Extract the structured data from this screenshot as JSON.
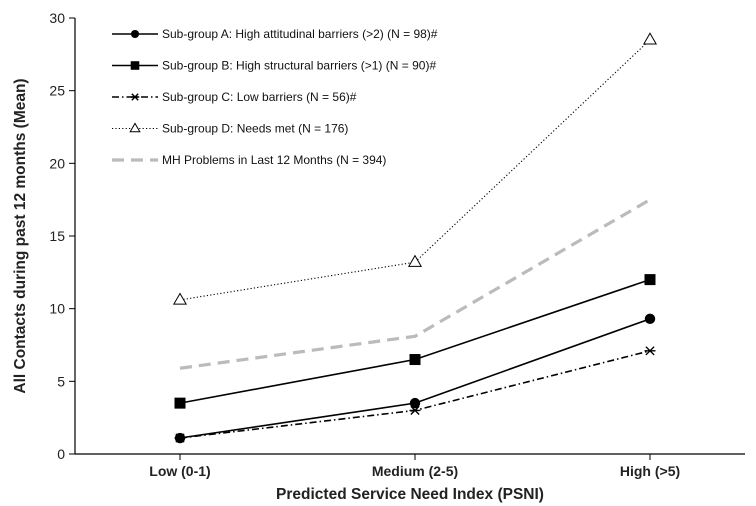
{
  "chart_data": {
    "type": "line",
    "categories": [
      "Low (0-1)",
      "Medium (2-5)",
      "High (>5)"
    ],
    "xlabel": "Predicted Service Need Index (PSNI)",
    "ylabel": "All Contacts during past 12 months (Mean)",
    "ylim": [
      0,
      30
    ],
    "yticks": [
      0,
      5,
      10,
      15,
      20,
      25,
      30
    ],
    "grid": false,
    "legend_position": "top-left",
    "series": [
      {
        "name": "Sub-group A:  High attitudinal barriers (>2) (N = 98)#",
        "values": [
          1.1,
          3.5,
          9.3
        ],
        "marker": "circle",
        "line": "solid",
        "color": "#000000"
      },
      {
        "name": "Sub-group B:  High structural barriers (>1) (N = 90)#",
        "values": [
          3.5,
          6.5,
          12.0
        ],
        "marker": "square",
        "line": "solid",
        "color": "#000000"
      },
      {
        "name": "Sub-group C:  Low barriers (N = 56)#",
        "values": [
          1.1,
          3.0,
          7.1
        ],
        "marker": "asterisk",
        "line": "dashdot",
        "color": "#000000"
      },
      {
        "name": "Sub-group D:  Needs met (N = 176)",
        "values": [
          10.6,
          13.2,
          28.5
        ],
        "marker": "triangle-open",
        "line": "dotted",
        "color": "#000000"
      },
      {
        "name": "MH Problems in Last 12 Months (N = 394)",
        "values": [
          5.9,
          8.1,
          17.5
        ],
        "marker": "none",
        "line": "dashed-thick",
        "color": "#bbbbbb"
      }
    ]
  }
}
